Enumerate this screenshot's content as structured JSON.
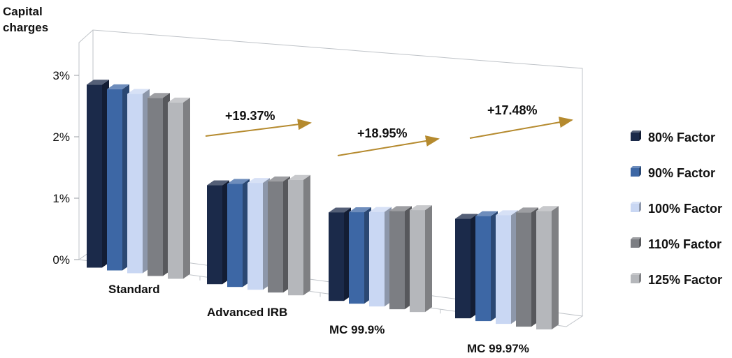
{
  "chart_data": {
    "type": "bar",
    "ylabel": "Capital charges",
    "y_ticks": [
      "0%",
      "1%",
      "2%",
      "3%"
    ],
    "ylim": [
      0,
      3
    ],
    "categories": [
      "Standard",
      "Advanced IRB",
      "MC 99.9%",
      "MC 99.97%"
    ],
    "series": [
      {
        "name": "80% Factor",
        "values": [
          2.98,
          1.61,
          1.44,
          1.62
        ],
        "color": "#1b2a4a"
      },
      {
        "name": "90% Factor",
        "values": [
          2.95,
          1.68,
          1.49,
          1.71
        ],
        "color": "#3d67a5"
      },
      {
        "name": "100% Factor",
        "values": [
          2.92,
          1.74,
          1.54,
          1.77
        ],
        "color": "#c9d7f3"
      },
      {
        "name": "110% Factor",
        "values": [
          2.9,
          1.81,
          1.6,
          1.86
        ],
        "color": "#7c7e83"
      },
      {
        "name": "125% Factor",
        "values": [
          2.87,
          1.88,
          1.66,
          1.93
        ],
        "color": "#b5b7bb"
      }
    ],
    "annotations": [
      {
        "text": "+19.37%",
        "category": "Advanced IRB"
      },
      {
        "text": "+18.95%",
        "category": "MC 99.9%"
      },
      {
        "text": "+17.48%",
        "category": "MC 99.97%"
      }
    ],
    "legend_position": "right",
    "grid": false,
    "perspective": "3d"
  }
}
